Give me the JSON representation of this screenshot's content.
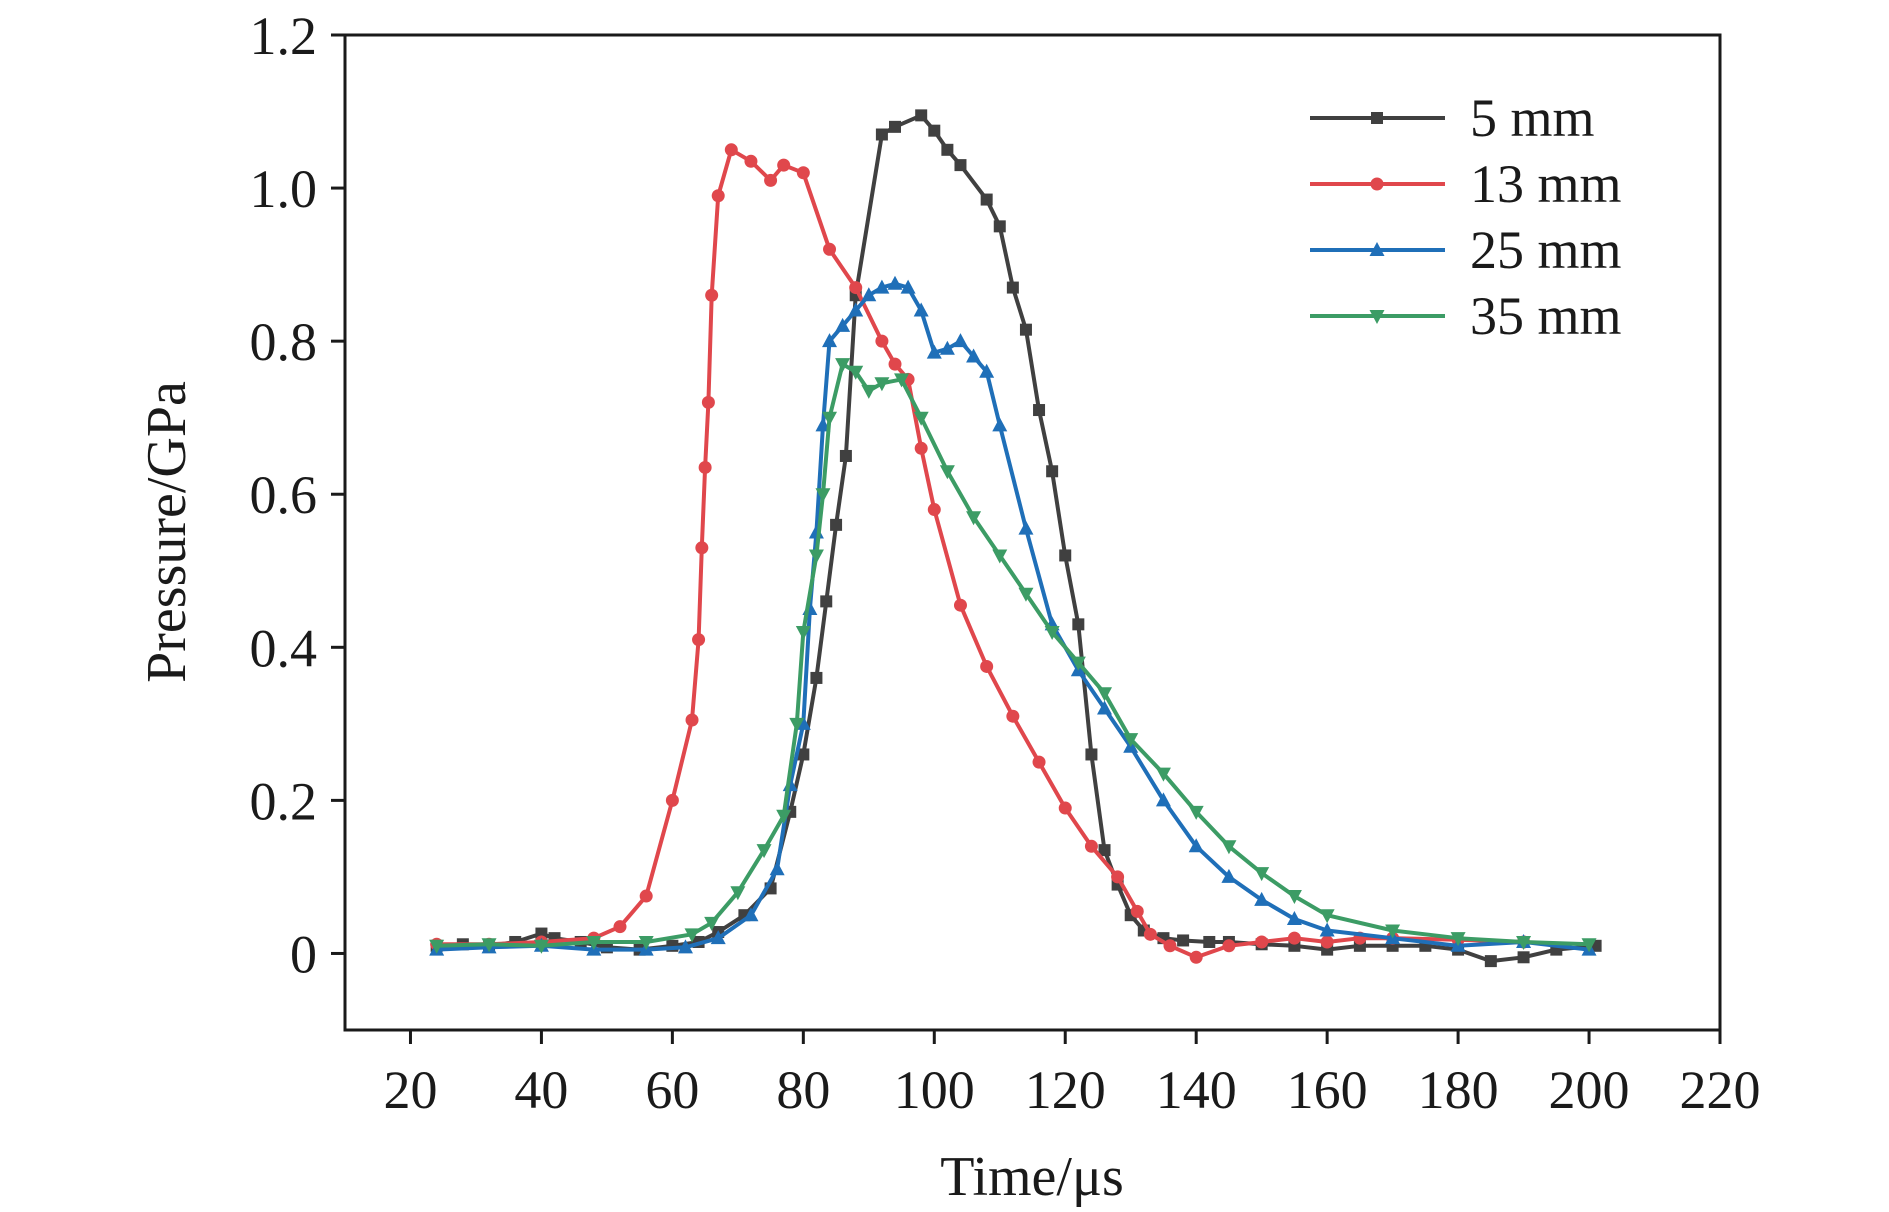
{
  "chart_data": {
    "type": "line",
    "title": "",
    "xlabel": "Time/μs",
    "ylabel": "Pressure/GPa",
    "xlim": [
      10,
      220
    ],
    "ylim": [
      -0.1,
      1.2
    ],
    "xticks": [
      20,
      40,
      60,
      80,
      100,
      120,
      140,
      160,
      180,
      200,
      220
    ],
    "yticks": [
      0,
      0.2,
      0.4,
      0.6,
      0.8,
      1.0,
      1.2
    ],
    "xtick_labels": [
      "20",
      "40",
      "60",
      "80",
      "100",
      "120",
      "140",
      "160",
      "180",
      "200",
      "220"
    ],
    "ytick_labels": [
      "0",
      "0.2",
      "0.4",
      "0.6",
      "0.8",
      "1.0",
      "1.2"
    ],
    "grid": false,
    "legend_position": "top-right",
    "series": [
      {
        "name": "5 mm",
        "color": "#404040",
        "marker": "square",
        "x": [
          24,
          28,
          32,
          36,
          40,
          42,
          46,
          50,
          55,
          60,
          64,
          67,
          71,
          75,
          78,
          80,
          82,
          83.5,
          85,
          86.5,
          88,
          92,
          94,
          98,
          100,
          102,
          104,
          108,
          110,
          112,
          114,
          116,
          118,
          120,
          122,
          124,
          126,
          128,
          130,
          132,
          135,
          138,
          142,
          145,
          150,
          155,
          160,
          165,
          170,
          175,
          180,
          185,
          190,
          195,
          201
        ],
        "y": [
          0.01,
          0.012,
          0.01,
          0.015,
          0.026,
          0.02,
          0.015,
          0.008,
          0.005,
          0.01,
          0.015,
          0.028,
          0.05,
          0.085,
          0.185,
          0.26,
          0.36,
          0.46,
          0.56,
          0.65,
          0.86,
          1.07,
          1.08,
          1.095,
          1.075,
          1.05,
          1.03,
          0.985,
          0.95,
          0.87,
          0.815,
          0.71,
          0.63,
          0.52,
          0.43,
          0.26,
          0.135,
          0.09,
          0.05,
          0.03,
          0.02,
          0.017,
          0.015,
          0.015,
          0.012,
          0.01,
          0.005,
          0.01,
          0.01,
          0.01,
          0.005,
          -0.01,
          -0.005,
          0.005,
          0.01
        ]
      },
      {
        "name": "13 mm",
        "color": "#e0474c",
        "marker": "circle",
        "x": [
          24,
          32,
          40,
          48,
          52,
          56,
          60,
          63,
          64,
          64.5,
          65,
          65.5,
          66,
          67,
          69,
          72,
          75,
          77,
          80,
          84,
          88,
          92,
          94,
          96,
          98,
          100,
          104,
          108,
          112,
          116,
          120,
          124,
          128,
          131,
          133,
          136,
          140,
          145,
          150,
          155,
          160,
          165,
          170,
          180,
          190
        ],
        "y": [
          0.012,
          0.012,
          0.015,
          0.02,
          0.035,
          0.075,
          0.2,
          0.305,
          0.41,
          0.53,
          0.635,
          0.72,
          0.86,
          0.99,
          1.05,
          1.035,
          1.01,
          1.03,
          1.02,
          0.92,
          0.87,
          0.8,
          0.77,
          0.75,
          0.66,
          0.58,
          0.455,
          0.375,
          0.31,
          0.25,
          0.19,
          0.14,
          0.1,
          0.055,
          0.025,
          0.01,
          -0.005,
          0.01,
          0.015,
          0.02,
          0.015,
          0.02,
          0.02,
          0.018,
          0.015
        ]
      },
      {
        "name": "25 mm",
        "color": "#1f6fb8",
        "marker": "triangle-up",
        "x": [
          24,
          32,
          40,
          48,
          56,
          62,
          67,
          72,
          76,
          78,
          80,
          81,
          82,
          83,
          84,
          86,
          88,
          90,
          92,
          94,
          96,
          98,
          100,
          102,
          104,
          106,
          108,
          110,
          114,
          118,
          122,
          126,
          130,
          135,
          140,
          145,
          150,
          155,
          160,
          170,
          180,
          190,
          200
        ],
        "y": [
          0.005,
          0.008,
          0.01,
          0.005,
          0.005,
          0.008,
          0.02,
          0.05,
          0.11,
          0.22,
          0.3,
          0.45,
          0.55,
          0.69,
          0.8,
          0.82,
          0.84,
          0.86,
          0.87,
          0.875,
          0.87,
          0.84,
          0.785,
          0.79,
          0.8,
          0.78,
          0.76,
          0.69,
          0.555,
          0.43,
          0.37,
          0.32,
          0.27,
          0.2,
          0.14,
          0.1,
          0.07,
          0.045,
          0.03,
          0.02,
          0.01,
          0.015,
          0.005
        ]
      },
      {
        "name": "35 mm",
        "color": "#3c9c65",
        "marker": "triangle-down",
        "x": [
          24,
          32,
          40,
          48,
          56,
          63,
          66,
          70,
          74,
          77,
          79,
          80,
          82,
          83,
          84,
          86,
          88,
          90,
          92,
          95,
          98,
          102,
          106,
          110,
          114,
          118,
          122,
          126,
          130,
          135,
          140,
          145,
          150,
          155,
          160,
          170,
          180,
          190,
          200
        ],
        "y": [
          0.01,
          0.012,
          0.01,
          0.015,
          0.015,
          0.025,
          0.04,
          0.08,
          0.135,
          0.18,
          0.3,
          0.42,
          0.52,
          0.6,
          0.7,
          0.77,
          0.76,
          0.735,
          0.745,
          0.75,
          0.7,
          0.63,
          0.57,
          0.52,
          0.47,
          0.42,
          0.38,
          0.34,
          0.28,
          0.235,
          0.185,
          0.14,
          0.105,
          0.075,
          0.05,
          0.03,
          0.02,
          0.015,
          0.012
        ]
      }
    ]
  }
}
